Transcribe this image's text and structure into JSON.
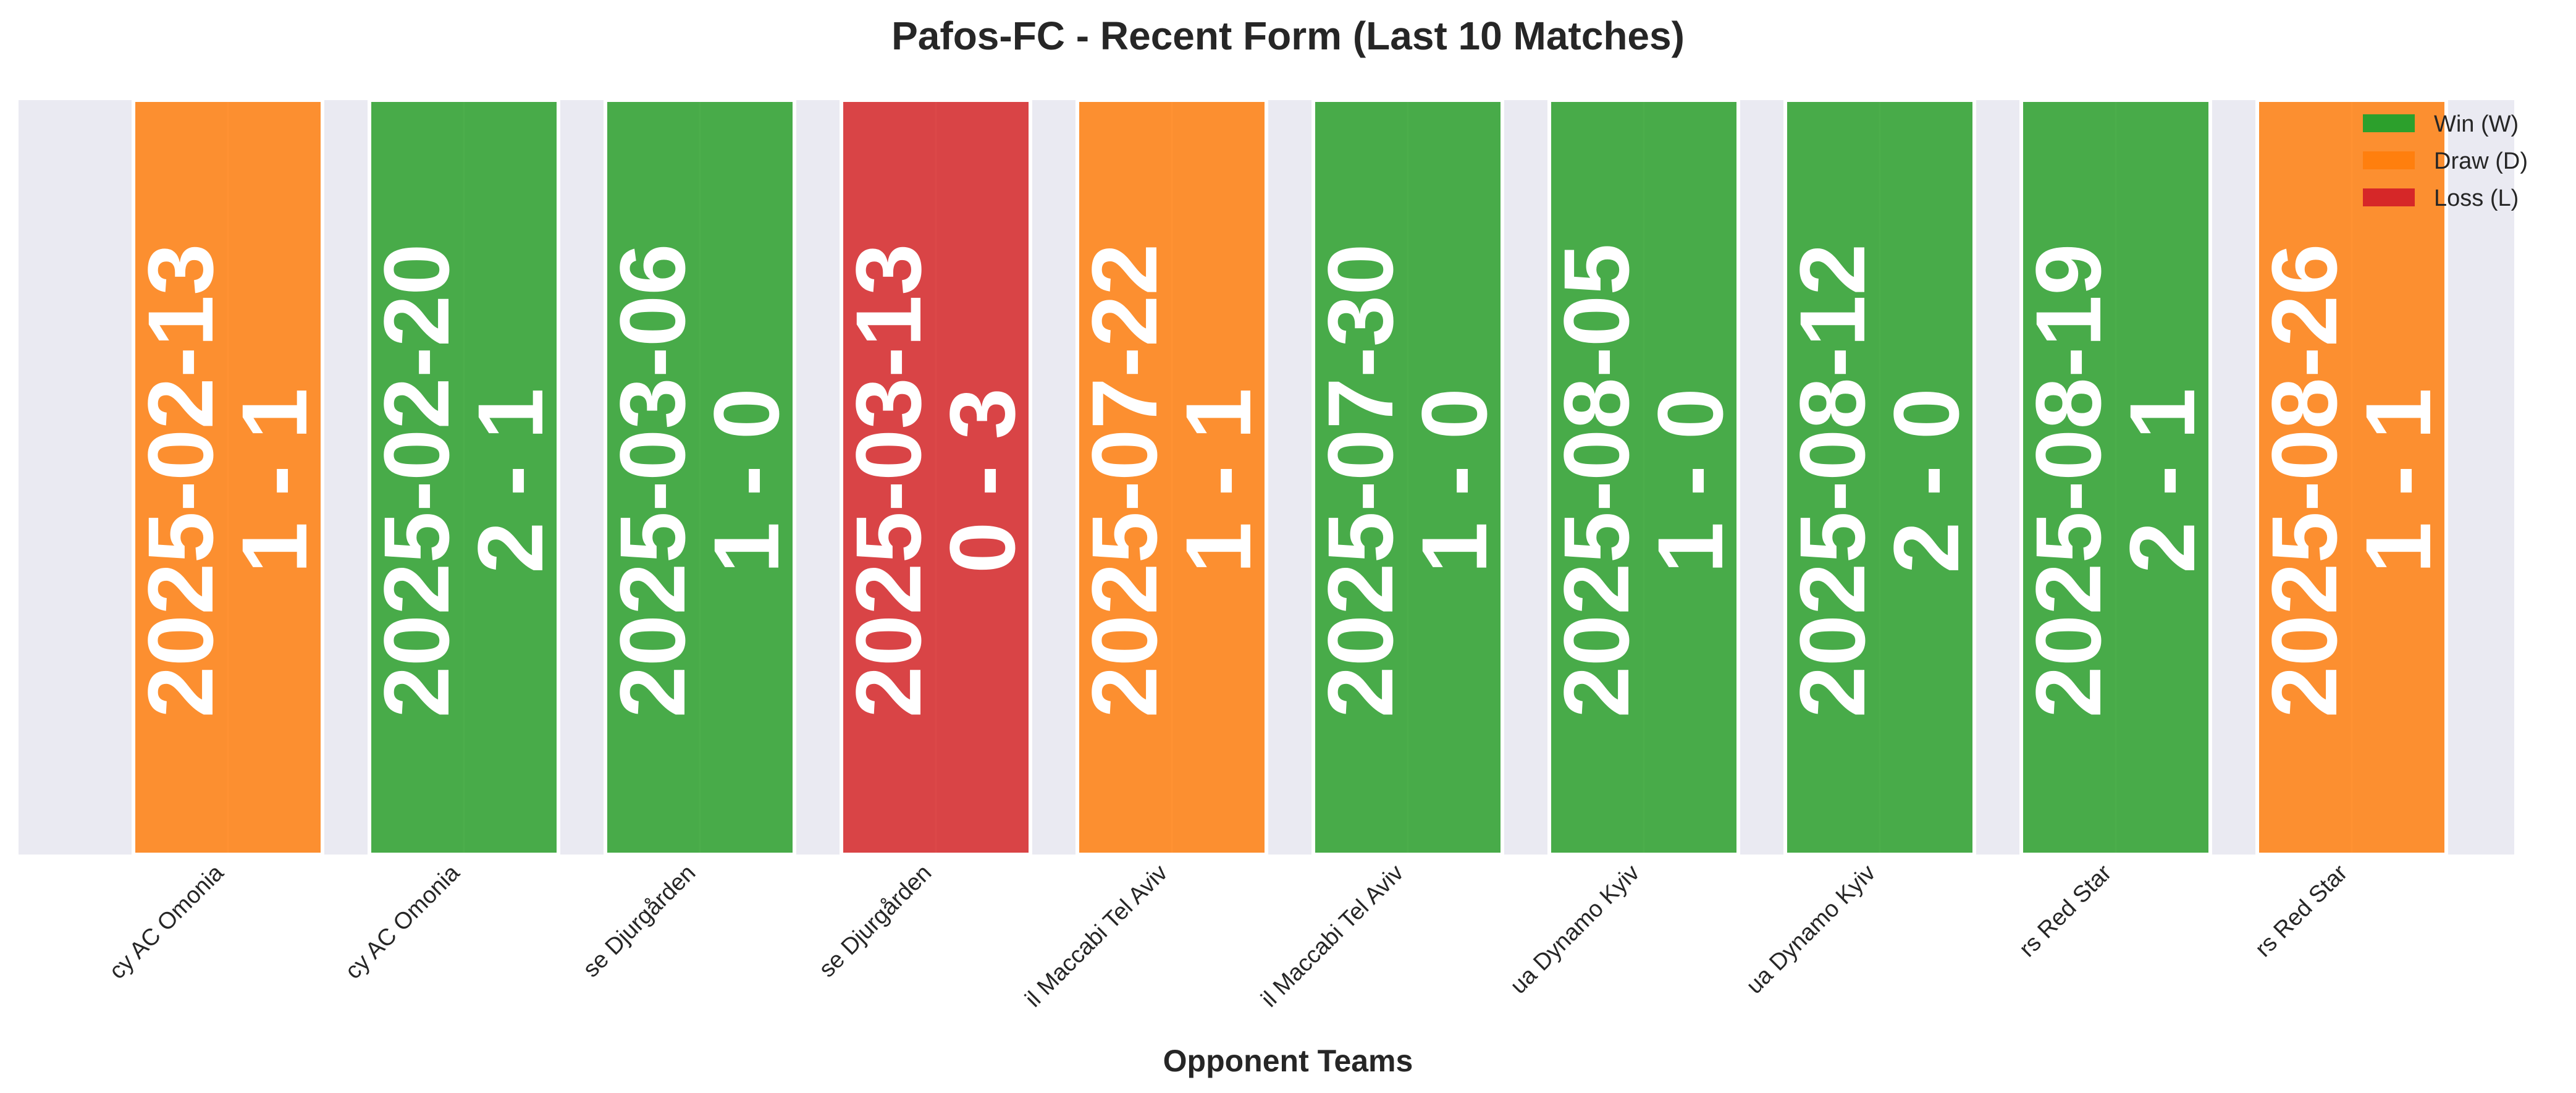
{
  "chart_data": {
    "type": "bar",
    "title": "Pafos-FC - Recent Form (Last 10 Matches)",
    "xlabel": "Opponent Teams",
    "ylabel": "",
    "categories": [
      "cy AC Omonia",
      "cy AC Omonia",
      "se Djurgården",
      "se Djurgården",
      "il Maccabi Tel Aviv",
      "il Maccabi Tel Aviv",
      "ua Dynamo Kyiv",
      "ua Dynamo Kyiv",
      "rs Red Star",
      "rs Red Star"
    ],
    "values": [
      1,
      1,
      1,
      1,
      1,
      1,
      1,
      1,
      1,
      1
    ],
    "ylim": [
      0,
      1
    ],
    "grid": true,
    "legend_position": "top-right",
    "matches": [
      {
        "opponent": "cy AC Omonia",
        "date": "2025-02-13",
        "score": "1 - 1",
        "result": "D"
      },
      {
        "opponent": "cy AC Omonia",
        "date": "2025-02-20",
        "score": "2 - 1",
        "result": "W"
      },
      {
        "opponent": "se Djurgården",
        "date": "2025-03-06",
        "score": "1 - 0",
        "result": "W"
      },
      {
        "opponent": "se Djurgården",
        "date": "2025-03-13",
        "score": "0 - 3",
        "result": "L"
      },
      {
        "opponent": "il Maccabi Tel Aviv",
        "date": "2025-07-22",
        "score": "1 - 1",
        "result": "D"
      },
      {
        "opponent": "il Maccabi Tel Aviv",
        "date": "2025-07-30",
        "score": "1 - 0",
        "result": "W"
      },
      {
        "opponent": "ua Dynamo Kyiv",
        "date": "2025-08-05",
        "score": "1 - 0",
        "result": "W"
      },
      {
        "opponent": "ua Dynamo Kyiv",
        "date": "2025-08-12",
        "score": "2 - 0",
        "result": "W"
      },
      {
        "opponent": "rs Red Star",
        "date": "2025-08-19",
        "score": "2 - 1",
        "result": "W"
      },
      {
        "opponent": "rs Red Star",
        "date": "2025-08-26",
        "score": "1 - 1",
        "result": "D"
      }
    ],
    "legend": [
      {
        "key": "W",
        "label": "Win (W)"
      },
      {
        "key": "D",
        "label": "Draw (D)"
      },
      {
        "key": "L",
        "label": "Loss (L)"
      }
    ],
    "colors": {
      "W": "#2ca02c",
      "D": "#ff7f0e",
      "L": "#d62728",
      "plot_background": "#eaeaf2",
      "grid": "#ffffff"
    }
  }
}
